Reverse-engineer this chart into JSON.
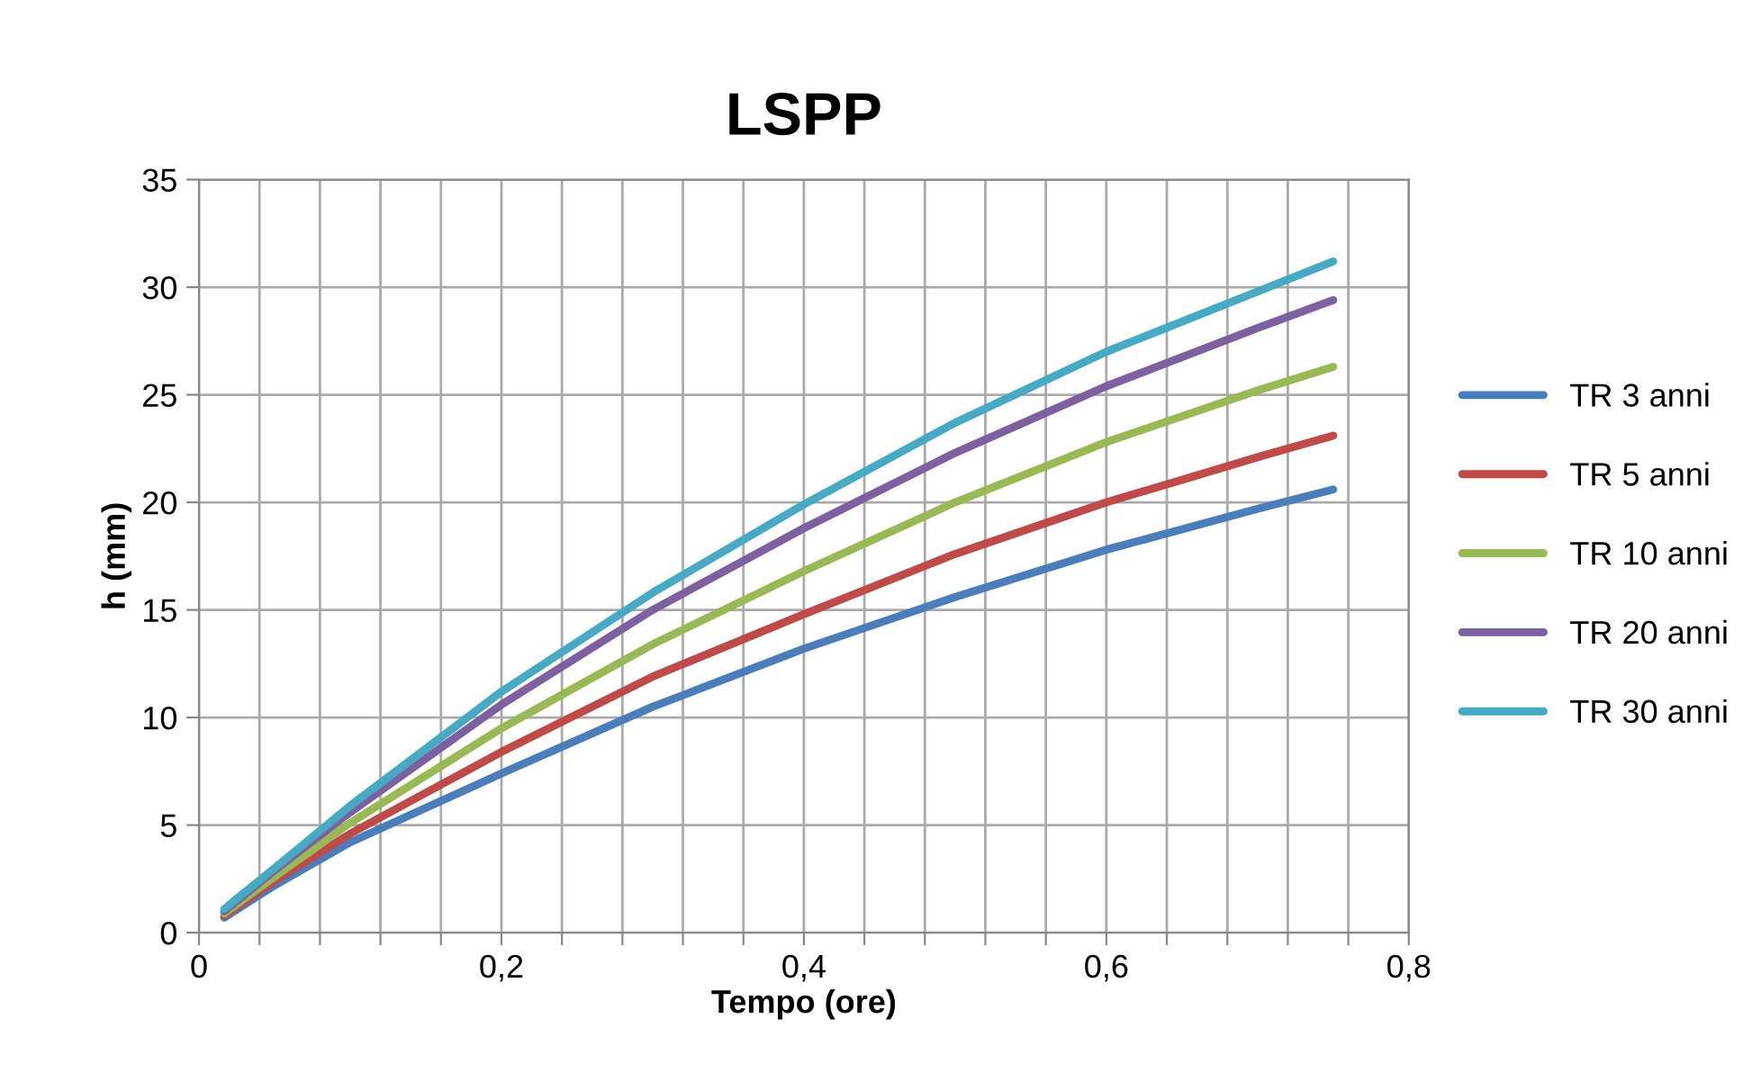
{
  "chart_data": {
    "type": "line",
    "title": "LSPP",
    "xlabel": "Tempo (ore)",
    "ylabel": "h (mm)",
    "x": [
      0.0167,
      0.05,
      0.1,
      0.2,
      0.3,
      0.4,
      0.5,
      0.6,
      0.7,
      0.75
    ],
    "series": [
      {
        "name": "TR 3 anni",
        "color": "#4a7ebb",
        "values": [
          0.7,
          2.2,
          4.2,
          7.4,
          10.5,
          13.2,
          15.6,
          17.8,
          19.7,
          20.6
        ]
      },
      {
        "name": "TR 5 anni",
        "color": "#be4b48",
        "values": [
          0.8,
          2.4,
          4.6,
          8.4,
          11.9,
          14.8,
          17.6,
          20.0,
          22.1,
          23.1
        ]
      },
      {
        "name": "TR 10 anni",
        "color": "#98b954",
        "values": [
          0.9,
          2.6,
          5.1,
          9.5,
          13.4,
          16.8,
          20.0,
          22.8,
          25.2,
          26.3
        ]
      },
      {
        "name": "TR 20 anni",
        "color": "#7d60a0",
        "values": [
          1.0,
          2.9,
          5.6,
          10.6,
          15.0,
          18.8,
          22.3,
          25.4,
          28.1,
          29.4
        ]
      },
      {
        "name": "TR 30 anni",
        "color": "#46aac5",
        "values": [
          1.1,
          3.0,
          5.9,
          11.2,
          15.8,
          19.9,
          23.7,
          27.0,
          29.8,
          31.2
        ]
      }
    ],
    "xlim": [
      0,
      0.8
    ],
    "ylim": [
      0,
      35
    ],
    "xticks": [
      0,
      {
        "value": 0.04,
        "label": null
      },
      {
        "value": 0.08,
        "label": null
      },
      {
        "value": 0.12,
        "label": null
      },
      {
        "value": 0.16,
        "label": null
      },
      {
        "value": 0.2,
        "label": "0,2"
      },
      {
        "value": 0.24,
        "label": null
      },
      {
        "value": 0.28,
        "label": null
      },
      {
        "value": 0.32,
        "label": null
      },
      {
        "value": 0.36,
        "label": null
      },
      {
        "value": 0.4,
        "label": "0,4"
      },
      {
        "value": 0.44,
        "label": null
      },
      {
        "value": 0.48,
        "label": null
      },
      {
        "value": 0.52,
        "label": null
      },
      {
        "value": 0.56,
        "label": null
      },
      {
        "value": 0.6,
        "label": "0,6"
      },
      {
        "value": 0.64,
        "label": null
      },
      {
        "value": 0.68,
        "label": null
      },
      {
        "value": 0.72,
        "label": null
      },
      {
        "value": 0.76,
        "label": null
      },
      {
        "value": 0.8,
        "label": "0,8"
      }
    ],
    "yticks": [
      0,
      5,
      10,
      15,
      20,
      25,
      30,
      35
    ],
    "grid": true,
    "legend": "right",
    "marker": "none",
    "line_style": "solid"
  }
}
